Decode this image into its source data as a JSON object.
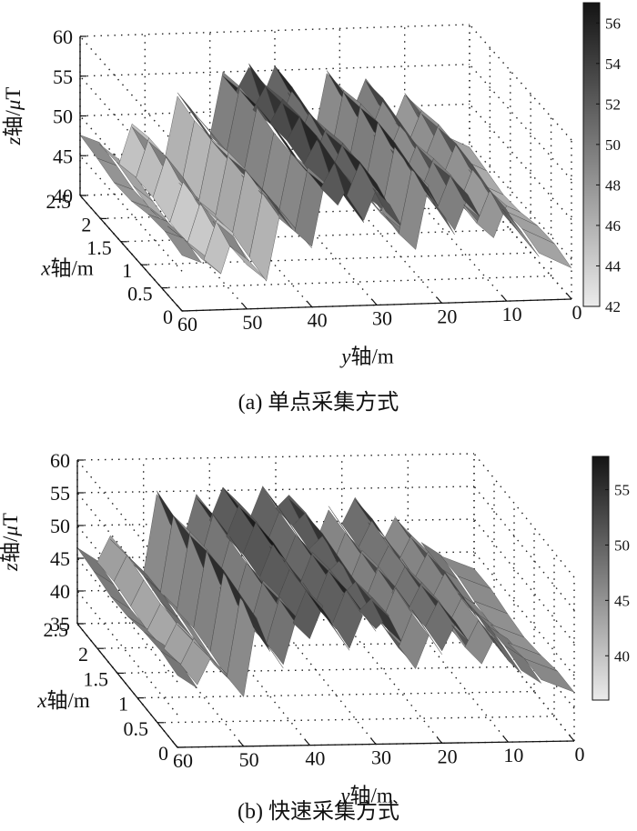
{
  "chart_data": [
    {
      "type": "surface3d",
      "caption": "(a) 单点采集方式",
      "xlabel_var": "x",
      "xlabel_rest": "轴/m",
      "ylabel_var": "y",
      "ylabel_rest": "轴/m",
      "zlabel_var": "z",
      "zlabel_mid": "轴/",
      "zlabel_greek": "μ",
      "zlabel_unit": "T",
      "x_ticks": [
        "0",
        "0.5",
        "1",
        "1.5",
        "2",
        "2.5"
      ],
      "y_ticks": [
        "60",
        "50",
        "40",
        "30",
        "20",
        "10",
        "0"
      ],
      "z_ticks": [
        "40",
        "45",
        "50",
        "55",
        "60"
      ],
      "xlim": [
        0,
        2.5
      ],
      "ylim": [
        0,
        60
      ],
      "zlim": [
        40,
        60
      ],
      "colorbar_ticks": [
        "42",
        "44",
        "46",
        "48",
        "50",
        "52",
        "54",
        "56"
      ],
      "colorbar_range": [
        42,
        57
      ],
      "colormap": "gray",
      "grid": true,
      "surface_profile": {
        "y": [
          60,
          57,
          54,
          52,
          50,
          47,
          45,
          43,
          40,
          38,
          36,
          34,
          32,
          30,
          28,
          26,
          24,
          22,
          20,
          18,
          16,
          14,
          12,
          10,
          8,
          5,
          0
        ],
        "z": [
          47,
          46,
          44,
          49,
          46,
          44,
          52,
          50,
          47,
          55,
          53,
          56,
          51,
          55,
          52,
          49,
          47,
          55,
          52,
          49,
          53,
          50,
          48,
          52,
          49,
          46,
          44
        ]
      }
    },
    {
      "type": "surface3d",
      "caption": "(b) 快速采集方式",
      "xlabel_var": "x",
      "xlabel_rest": "轴/m",
      "ylabel_var": "y",
      "ylabel_rest": "轴/m",
      "zlabel_var": "z",
      "zlabel_mid": "轴/",
      "zlabel_greek": "μ",
      "zlabel_unit": "T",
      "x_ticks": [
        "0",
        "0.5",
        "1",
        "1.5",
        "2",
        "2.5"
      ],
      "y_ticks": [
        "60",
        "50",
        "40",
        "30",
        "20",
        "10",
        "0"
      ],
      "z_ticks": [
        "35",
        "40",
        "45",
        "50",
        "55",
        "60"
      ],
      "xlim": [
        0,
        2.5
      ],
      "ylim": [
        0,
        60
      ],
      "zlim": [
        35,
        60
      ],
      "colorbar_ticks": [
        "40",
        "45",
        "50",
        "55"
      ],
      "colorbar_range": [
        36,
        58
      ],
      "colormap": "gray",
      "grid": true,
      "surface_profile": {
        "y": [
          60,
          57,
          55,
          52,
          50,
          48,
          46,
          44,
          42,
          40,
          38,
          36,
          34,
          32,
          30,
          28,
          26,
          24,
          22,
          20,
          18,
          16,
          14,
          12,
          10,
          8,
          5,
          0
        ],
        "z": [
          46,
          44,
          48,
          45,
          43,
          55,
          50,
          47,
          54,
          51,
          56,
          53,
          50,
          55,
          52,
          54,
          50,
          47,
          52,
          49,
          53,
          50,
          47,
          51,
          48,
          46,
          44,
          42
        ]
      }
    }
  ]
}
